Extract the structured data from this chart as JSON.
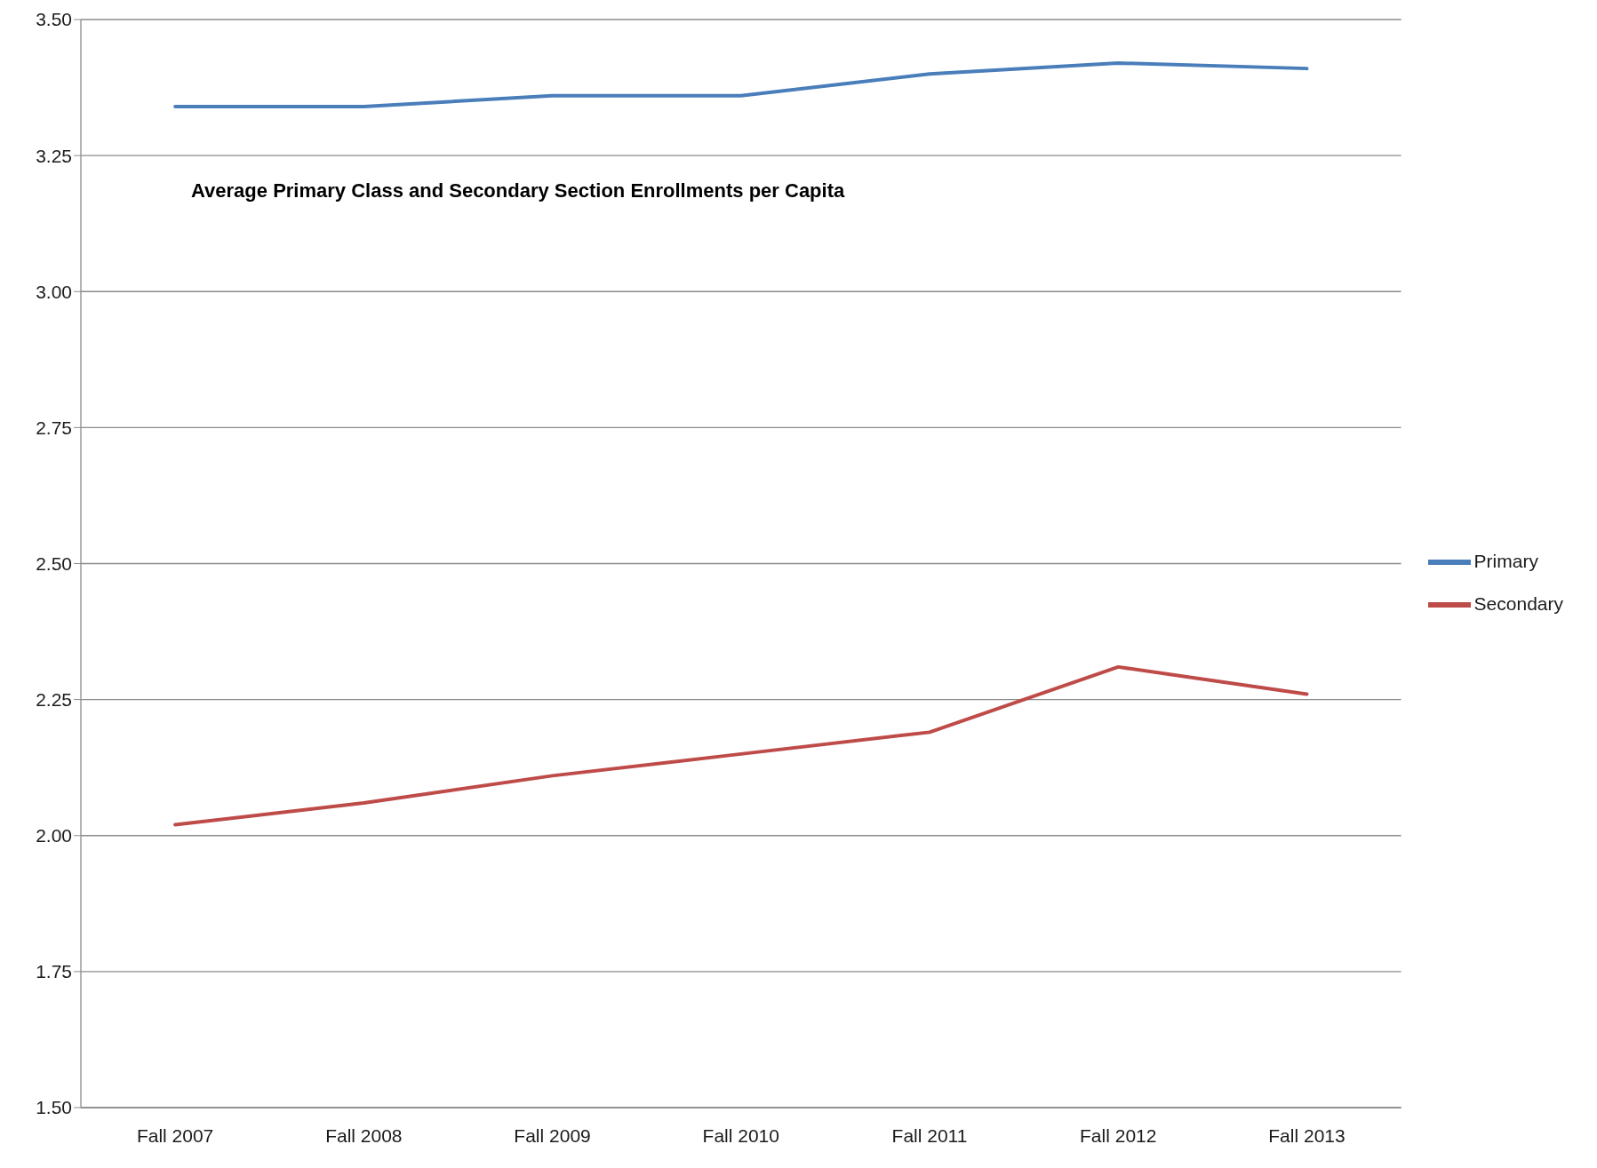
{
  "chart_data": {
    "type": "line",
    "title": "Average Primary Class and Secondary Section Enrollments per Capita",
    "categories": [
      "Fall 2007",
      "Fall 2008",
      "Fall 2009",
      "Fall 2010",
      "Fall 2011",
      "Fall 2012",
      "Fall 2013"
    ],
    "series": [
      {
        "name": "Primary",
        "color": "#4a7ebb",
        "values": [
          3.34,
          3.34,
          3.36,
          3.36,
          3.4,
          3.42,
          3.41
        ]
      },
      {
        "name": "Secondary",
        "color": "#be4b48",
        "values": [
          2.02,
          2.06,
          2.11,
          2.15,
          2.19,
          2.31,
          2.26
        ]
      }
    ],
    "ylim": [
      1.5,
      3.5
    ],
    "yticks": [
      {
        "value": 1.5,
        "label": "1.50"
      },
      {
        "value": 1.75,
        "label": "1.75"
      },
      {
        "value": 2.0,
        "label": "2.00"
      },
      {
        "value": 2.25,
        "label": "2.25"
      },
      {
        "value": 2.5,
        "label": "2.50"
      },
      {
        "value": 2.75,
        "label": "2.75"
      },
      {
        "value": 3.0,
        "label": "3.00"
      },
      {
        "value": 3.25,
        "label": "3.25"
      },
      {
        "value": 3.5,
        "label": "3.50"
      }
    ],
    "grid": "y",
    "legend": "right",
    "marker": "none",
    "line_style": "solid"
  }
}
